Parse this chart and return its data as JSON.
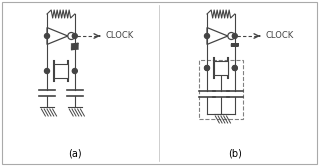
{
  "bg_color": "#ffffff",
  "line_color": "#444444",
  "title_a": "(a)",
  "title_b": "(b)",
  "clock_label": "CLOCK",
  "fig_width": 3.19,
  "fig_height": 1.66,
  "dpi": 100
}
